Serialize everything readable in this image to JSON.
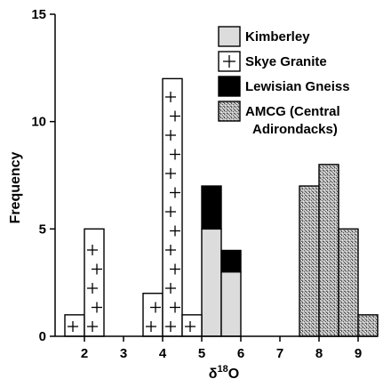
{
  "chart_data": {
    "type": "bar",
    "chart_kind": "stacked histogram",
    "xlabel": "δ",
    "xlabel_superscript": "18",
    "xlabel_suffix": "O",
    "ylabel": "Frequency",
    "xlim": [
      1.25,
      9.5
    ],
    "ylim": [
      0,
      15
    ],
    "x_ticks": [
      "2",
      "3",
      "4",
      "5",
      "6",
      "7",
      "8",
      "9"
    ],
    "y_ticks": [
      "0",
      "5",
      "10",
      "15"
    ],
    "x_tick_values": [
      2,
      3,
      4,
      5,
      6,
      7,
      8,
      9
    ],
    "y_tick_values": [
      0,
      5,
      10,
      15
    ],
    "bin_width": 0.5,
    "grid": false,
    "legend_position": "top-right",
    "series": [
      {
        "name": "Kimberley",
        "fill": "light-gray",
        "color": "#dcdcdc",
        "bars": [
          {
            "x0": 5.0,
            "x1": 5.5,
            "value": 5
          },
          {
            "x0": 5.5,
            "x1": 6.0,
            "value": 3
          }
        ]
      },
      {
        "name": "Skye Granite",
        "fill": "crosses",
        "color": "#ffffff",
        "bars": [
          {
            "x0": 1.5,
            "x1": 2.0,
            "value": 1
          },
          {
            "x0": 2.0,
            "x1": 2.5,
            "value": 5
          },
          {
            "x0": 3.5,
            "x1": 4.0,
            "value": 2
          },
          {
            "x0": 4.0,
            "x1": 4.5,
            "value": 12
          },
          {
            "x0": 4.5,
            "x1": 5.0,
            "value": 1
          }
        ]
      },
      {
        "name": "Lewisian Gneiss",
        "fill": "black",
        "color": "#000000",
        "bars": [
          {
            "x0": 5.0,
            "x1": 5.5,
            "base": 5,
            "value": 2
          },
          {
            "x0": 5.5,
            "x1": 6.0,
            "base": 3,
            "value": 1
          }
        ]
      },
      {
        "name": "AMCG (Central Adirondacks)",
        "name_lines": [
          "AMCG (Central",
          "Adirondacks)"
        ],
        "fill": "stipple",
        "color": "#9a9a9a",
        "bars": [
          {
            "x0": 7.5,
            "x1": 8.0,
            "value": 7
          },
          {
            "x0": 8.0,
            "x1": 8.5,
            "value": 8
          },
          {
            "x0": 8.5,
            "x1": 9.0,
            "value": 5
          },
          {
            "x0": 9.0,
            "x1": 9.5,
            "value": 1
          }
        ]
      }
    ]
  }
}
